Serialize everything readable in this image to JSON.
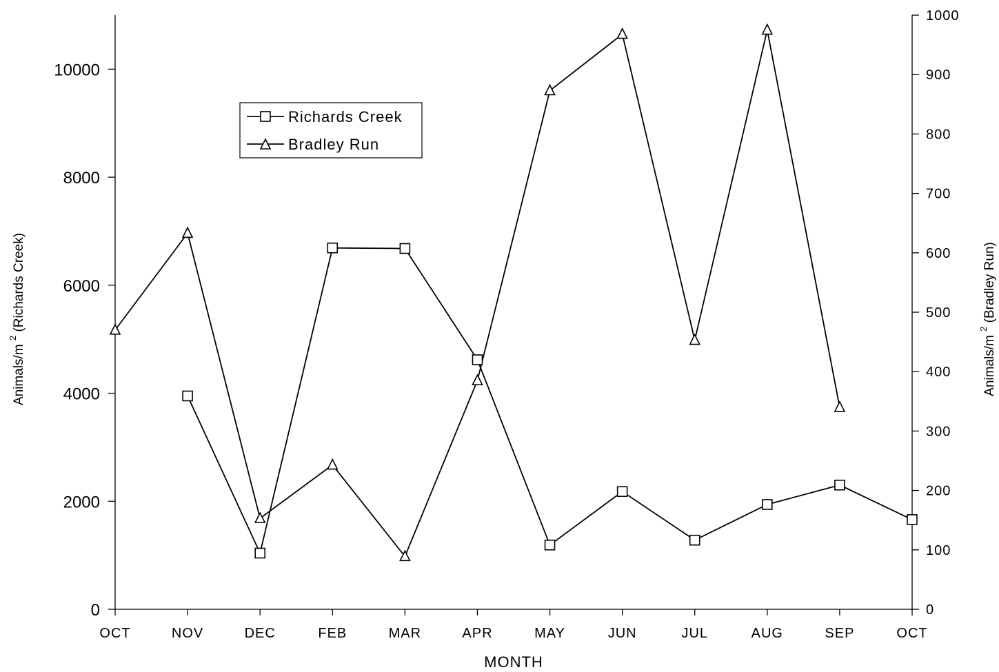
{
  "chart_data": {
    "type": "line",
    "x_label": "MONTH",
    "categories": [
      "OCT",
      "NOV",
      "DEC",
      "FEB",
      "MAR",
      "APR",
      "MAY",
      "JUN",
      "JUL",
      "AUG",
      "SEP",
      "OCT"
    ],
    "y_left": {
      "label_main": "Animals/m",
      "label_sup": "2",
      "label_suffix": "(Richards Creek)",
      "ylim": [
        0,
        11000
      ],
      "ticks": [
        0,
        2000,
        4000,
        6000,
        8000,
        10000
      ]
    },
    "y_right": {
      "label_main": "Animals/m",
      "label_sup": "2",
      "label_suffix": "(Bradley Run)",
      "ylim": [
        0,
        1000
      ],
      "ticks": [
        0,
        100,
        200,
        300,
        400,
        500,
        600,
        700,
        800,
        900,
        1000
      ]
    },
    "series": [
      {
        "name": "Richards Creek",
        "axis": "left",
        "marker": "square",
        "values": [
          null,
          3950,
          1040,
          6690,
          6680,
          4620,
          1190,
          2180,
          1280,
          1940,
          2300,
          1660
        ]
      },
      {
        "name": "Bradley Run",
        "axis": "right",
        "marker": "triangle",
        "values": [
          470,
          633,
          153,
          243,
          89,
          385,
          873,
          968,
          453,
          975,
          340,
          null
        ]
      }
    ],
    "legend": {
      "position": "top-left",
      "entries": [
        "Richards Creek",
        "Bradley Run"
      ]
    },
    "grid": false,
    "colors": {
      "line": "#000000",
      "marker_fill": "#ffffff",
      "background": "#ffffff"
    }
  }
}
